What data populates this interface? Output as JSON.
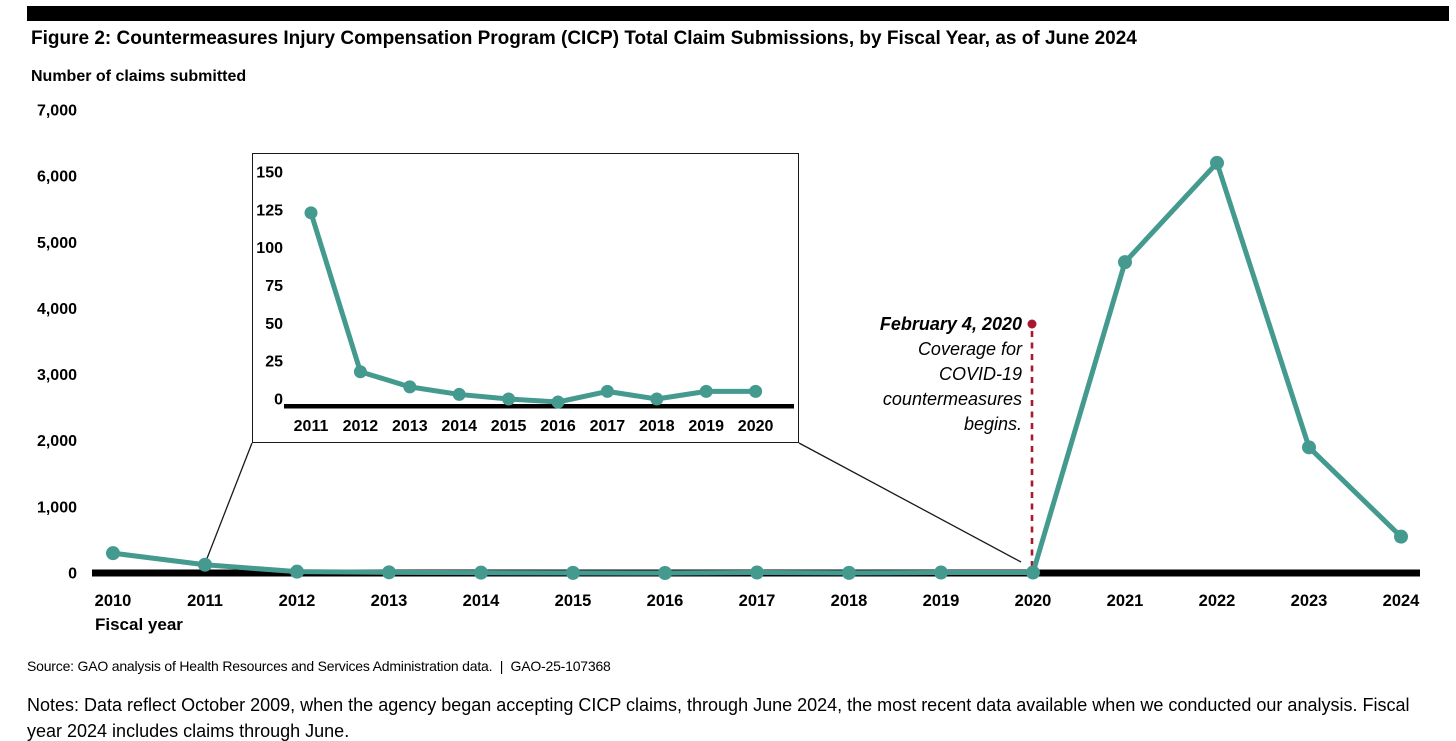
{
  "title": "Figure 2: Countermeasures Injury Compensation Program (CICP) Total Claim Submissions, by Fiscal Year, as of June 2024",
  "y_axis_label": "Number of claims submitted",
  "x_axis_label": "Fiscal year",
  "annotation": {
    "date": "February 4, 2020",
    "lines": [
      "Coverage for",
      "COVID-19",
      "countermeasures",
      "begins."
    ]
  },
  "source": "Source: GAO analysis of Health Resources and Services Administration data.  |  GAO-25-107368",
  "notes": "Notes: Data reflect October 2009, when the agency began accepting CICP claims, through June 2024, the most recent data available when we conducted our analysis. Fiscal year 2024 includes claims through June.",
  "colors": {
    "line_teal": "#459A90",
    "annotation_red": "#A6192E",
    "axis": "#000000",
    "callout": "#1a1a1a"
  },
  "chart_data": [
    {
      "name": "main",
      "type": "line",
      "title": "CICP total claim submissions by fiscal year, 2010-2024",
      "xlabel": "Fiscal year",
      "ylabel": "Number of claims submitted",
      "categories": [
        "2010",
        "2011",
        "2012",
        "2013",
        "2014",
        "2015",
        "2016",
        "2017",
        "2018",
        "2019",
        "2020",
        "2021",
        "2022",
        "2023",
        "2024"
      ],
      "values": [
        300,
        125,
        20,
        10,
        5,
        2,
        0,
        7,
        2,
        7,
        7,
        4700,
        6200,
        1900,
        550
      ],
      "ylim": [
        0,
        7000
      ],
      "ytick_values": [
        0,
        1000,
        2000,
        3000,
        4000,
        5000,
        6000,
        7000
      ],
      "ytick_labels": [
        "0",
        "1,000",
        "2,000",
        "3,000",
        "4,000",
        "5,000",
        "6,000",
        "7,000"
      ],
      "grid": false,
      "legend_position": "none",
      "event_annotation": "Red dashed vertical line at fiscal year 2020: February 4, 2020 - Coverage for COVID-19 countermeasures begins."
    },
    {
      "name": "inset",
      "type": "line",
      "title": "Inset detail of fiscal years 2011-2020",
      "categories": [
        "2011",
        "2012",
        "2013",
        "2014",
        "2015",
        "2016",
        "2017",
        "2018",
        "2019",
        "2020"
      ],
      "values": [
        125,
        20,
        10,
        5,
        2,
        0,
        7,
        2,
        7,
        7
      ],
      "ylim": [
        0,
        150
      ],
      "ytick_values": [
        0,
        25,
        50,
        75,
        100,
        125,
        150
      ],
      "ytick_labels": [
        "0",
        "25",
        "50",
        "75",
        "100",
        "125",
        "150"
      ],
      "grid": false
    }
  ]
}
